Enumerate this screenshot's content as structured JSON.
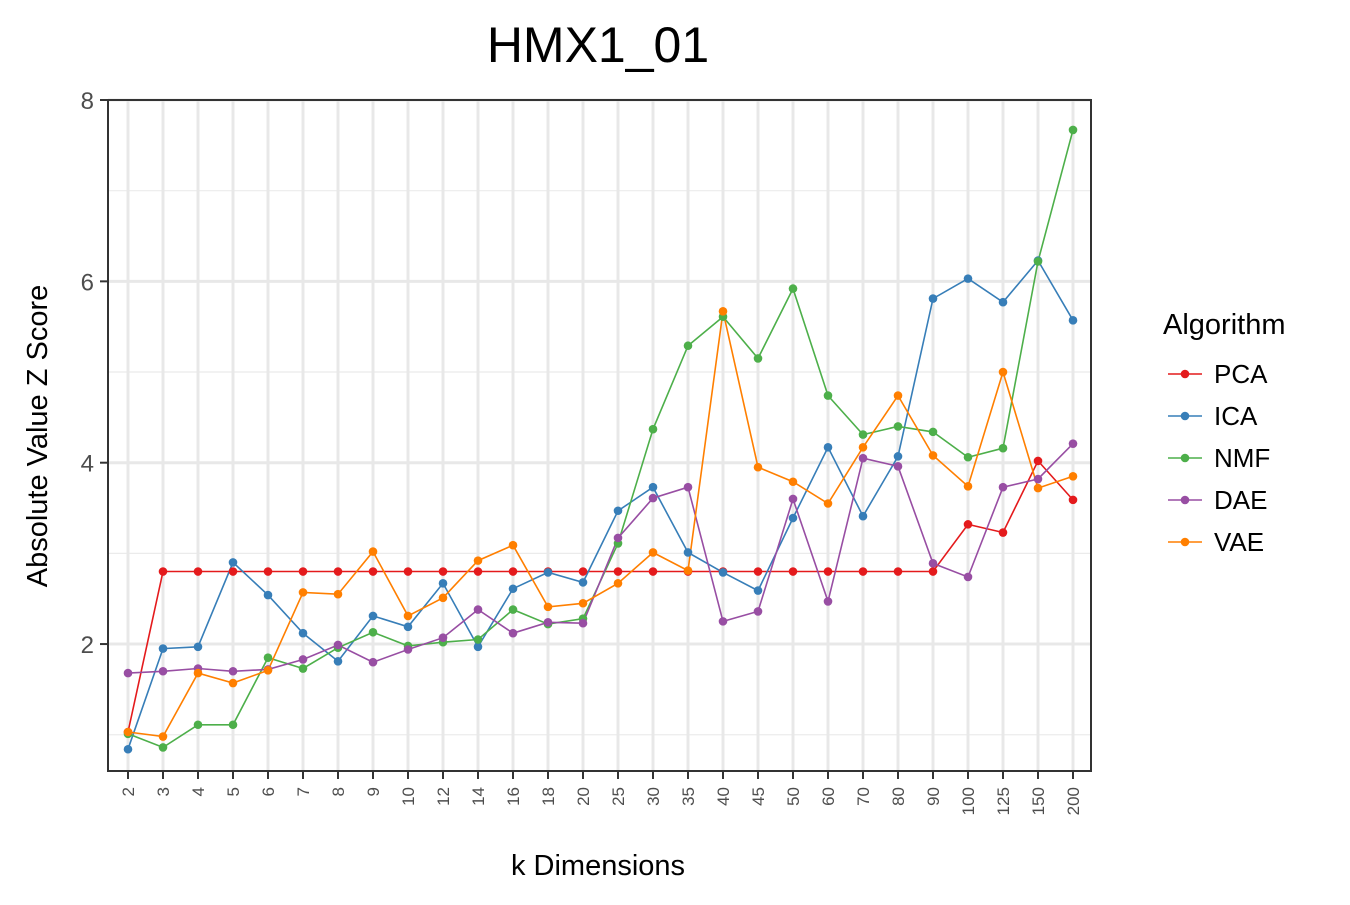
{
  "chart_data": {
    "type": "line",
    "title": "HMX1_01",
    "xlabel": "k Dimensions",
    "ylabel": "Absolute Value Z Score",
    "legend_title": "Algorithm",
    "legend_position": "right",
    "grid": true,
    "ylim": [
      0.6,
      8.0
    ],
    "yticks": [
      2,
      4,
      6,
      8
    ],
    "categories": [
      "2",
      "3",
      "4",
      "5",
      "6",
      "7",
      "8",
      "9",
      "10",
      "12",
      "14",
      "16",
      "18",
      "20",
      "25",
      "30",
      "35",
      "40",
      "45",
      "50",
      "60",
      "70",
      "80",
      "90",
      "100",
      "125",
      "150",
      "200"
    ],
    "series": [
      {
        "name": "PCA",
        "color": "#E41A1C",
        "values": [
          1.03,
          2.8,
          2.8,
          2.8,
          2.8,
          2.8,
          2.8,
          2.8,
          2.8,
          2.8,
          2.8,
          2.8,
          2.8,
          2.8,
          2.8,
          2.8,
          2.8,
          2.8,
          2.8,
          2.8,
          2.8,
          2.8,
          2.8,
          2.8,
          3.32,
          3.23,
          4.02,
          3.59
        ]
      },
      {
        "name": "ICA",
        "color": "#377EB8",
        "values": [
          0.84,
          1.95,
          1.97,
          2.9,
          2.54,
          2.12,
          1.81,
          2.31,
          2.19,
          2.67,
          1.97,
          2.61,
          2.79,
          2.68,
          3.47,
          3.73,
          3.01,
          2.79,
          2.59,
          3.39,
          4.17,
          3.41,
          4.07,
          5.81,
          6.03,
          5.77,
          6.23,
          5.57
        ]
      },
      {
        "name": "NMF",
        "color": "#4DAF4A",
        "values": [
          1.01,
          0.86,
          1.11,
          1.11,
          1.85,
          1.73,
          1.96,
          2.13,
          1.98,
          2.02,
          2.05,
          2.38,
          2.22,
          2.28,
          3.11,
          4.37,
          5.29,
          5.61,
          5.15,
          5.92,
          4.74,
          4.31,
          4.4,
          4.34,
          4.06,
          4.16,
          6.22,
          7.67
        ]
      },
      {
        "name": "DAE",
        "color": "#984EA3",
        "values": [
          1.68,
          1.7,
          1.73,
          1.7,
          1.72,
          1.83,
          1.99,
          1.8,
          1.94,
          2.07,
          2.38,
          2.12,
          2.24,
          2.23,
          3.17,
          3.61,
          3.73,
          2.25,
          2.36,
          3.6,
          2.47,
          4.05,
          3.96,
          2.89,
          2.74,
          3.73,
          3.82,
          4.21
        ]
      },
      {
        "name": "VAE",
        "color": "#FF7F00",
        "values": [
          1.03,
          0.98,
          1.68,
          1.57,
          1.71,
          2.57,
          2.55,
          3.02,
          2.31,
          2.51,
          2.92,
          3.09,
          2.41,
          2.45,
          2.67,
          3.01,
          2.81,
          5.67,
          3.95,
          3.79,
          3.55,
          4.17,
          4.74,
          4.08,
          3.74,
          5.0,
          3.72,
          3.85
        ]
      }
    ]
  }
}
